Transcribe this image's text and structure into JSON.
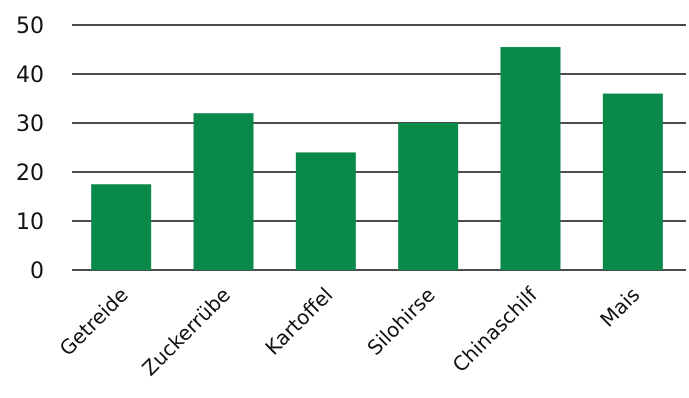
{
  "chart_data": {
    "type": "bar",
    "categories": [
      "Getreide",
      "Zuckerrübe",
      "Kartoffel",
      "Silohirse",
      "Chinaschilf",
      "Mais"
    ],
    "values": [
      17.5,
      32,
      24,
      30,
      45.5,
      36
    ],
    "title": "",
    "xlabel": "",
    "ylabel": "",
    "ylim": [
      0,
      50
    ],
    "yticks": [
      "0",
      "10",
      "20",
      "30",
      "40",
      "50"
    ],
    "grid": true,
    "bar_color": "#0a8a4a",
    "axis_color": "#111111"
  }
}
